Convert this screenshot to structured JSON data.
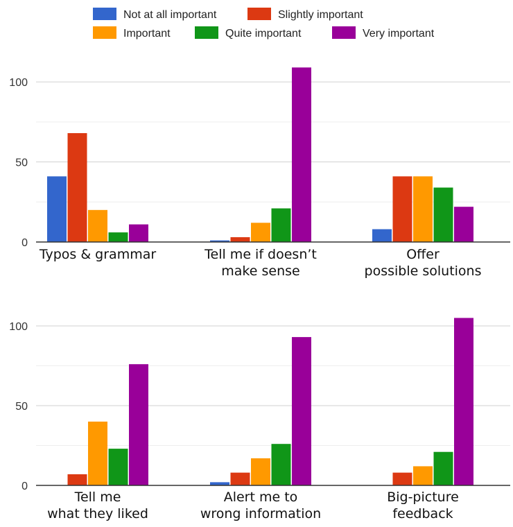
{
  "chart_data": {
    "type": "bar",
    "legend_position": "top",
    "legend": [
      {
        "name": "Not at all important",
        "color": "#3366cc"
      },
      {
        "name": "Slightly important",
        "color": "#dc3912"
      },
      {
        "name": "Important",
        "color": "#ff9900"
      },
      {
        "name": "Quite important",
        "color": "#109618"
      },
      {
        "name": "Very important",
        "color": "#990099"
      }
    ],
    "panels": [
      {
        "ylim": [
          0,
          110
        ],
        "yticks": [
          0,
          50,
          100
        ],
        "grid": true,
        "categories": [
          {
            "label": [
              "Typos & grammar"
            ],
            "values": [
              41,
              68,
              20,
              6,
              11
            ]
          },
          {
            "label": [
              "Tell me if doesn’t",
              "make sense"
            ],
            "values": [
              1,
              3,
              12,
              21,
              109
            ]
          },
          {
            "label": [
              "Offer",
              "possible solutions"
            ],
            "values": [
              8,
              41,
              41,
              34,
              22
            ]
          }
        ]
      },
      {
        "ylim": [
          0,
          110
        ],
        "yticks": [
          0,
          50,
          100
        ],
        "grid": true,
        "categories": [
          {
            "label": [
              "Tell me",
              "what they liked"
            ],
            "values": [
              0,
              7,
              40,
              23,
              76
            ]
          },
          {
            "label": [
              "Alert me to",
              "wrong information"
            ],
            "values": [
              2,
              8,
              17,
              26,
              93
            ]
          },
          {
            "label": [
              "Big-picture",
              "feedback"
            ],
            "values": [
              0,
              8,
              12,
              21,
              105
            ]
          }
        ]
      }
    ]
  }
}
